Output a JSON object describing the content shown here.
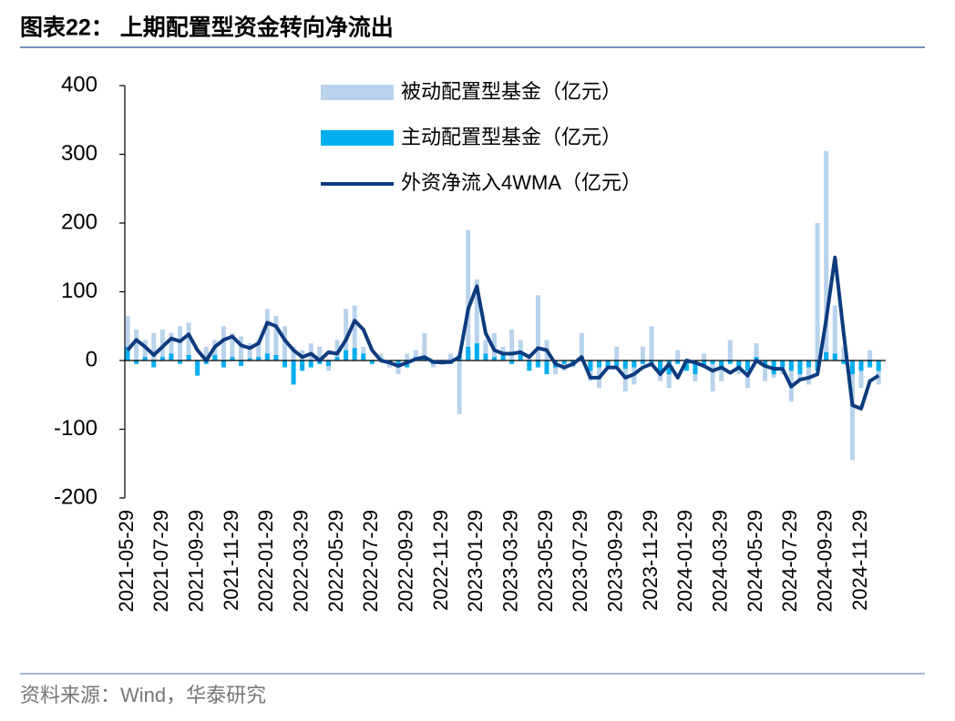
{
  "header": "图表22：  上期配置型资金转向净流出",
  "source": "资料来源：Wind，华泰研究",
  "chart_data": {
    "type": "bar-line",
    "categories": [
      "2021-05-29",
      null,
      null,
      null,
      "2021-07-29",
      null,
      null,
      null,
      "2021-09-29",
      null,
      null,
      null,
      "2021-11-29",
      null,
      null,
      null,
      "2022-01-29",
      null,
      null,
      null,
      "2022-03-29",
      null,
      null,
      null,
      "2022-05-29",
      null,
      null,
      null,
      "2022-07-29",
      null,
      null,
      null,
      "2022-09-29",
      null,
      null,
      null,
      "2022-11-29",
      null,
      null,
      null,
      "2023-01-29",
      null,
      null,
      null,
      "2023-03-29",
      null,
      null,
      null,
      "2023-05-29",
      null,
      null,
      null,
      "2023-07-29",
      null,
      null,
      null,
      "2023-09-29",
      null,
      null,
      null,
      "2023-11-29",
      null,
      null,
      null,
      "2024-01-29",
      null,
      null,
      null,
      "2024-03-29",
      null,
      null,
      null,
      "2024-05-29",
      null,
      null,
      null,
      "2024-07-29",
      null,
      null,
      null,
      "2024-09-29",
      null,
      null,
      null,
      "2024-11-29",
      null,
      null
    ],
    "series": [
      {
        "name": "被动配置型基金（亿元）",
        "kind": "bar",
        "color": "#b9d3ec",
        "values": [
          65,
          45,
          30,
          40,
          45,
          40,
          50,
          55,
          -10,
          20,
          30,
          50,
          40,
          35,
          25,
          30,
          75,
          65,
          50,
          20,
          15,
          25,
          20,
          -15,
          30,
          75,
          80,
          20,
          -5,
          10,
          -10,
          -20,
          10,
          15,
          40,
          -10,
          -5,
          10,
          -78,
          190,
          118,
          30,
          40,
          20,
          45,
          30,
          10,
          95,
          30,
          -20,
          -15,
          -10,
          40,
          -30,
          -40,
          -10,
          20,
          -45,
          -35,
          20,
          50,
          -30,
          -40,
          15,
          -10,
          -30,
          10,
          -45,
          -30,
          30,
          -20,
          -40,
          25,
          -30,
          -25,
          -20,
          -60,
          -30,
          -35,
          200,
          305,
          80,
          20,
          -145,
          -40,
          15,
          -35
        ]
      },
      {
        "name": "主动配置型基金（亿元）",
        "kind": "bar",
        "color": "#00aeef",
        "values": [
          20,
          -5,
          5,
          -10,
          5,
          10,
          -5,
          8,
          -22,
          -5,
          8,
          -10,
          5,
          -8,
          3,
          5,
          10,
          8,
          -10,
          -35,
          -15,
          -10,
          -5,
          -8,
          5,
          15,
          18,
          10,
          -5,
          3,
          -5,
          -8,
          -10,
          5,
          3,
          -5,
          -3,
          -5,
          8,
          20,
          25,
          10,
          5,
          8,
          -5,
          10,
          -15,
          -10,
          -20,
          -10,
          -5,
          -8,
          5,
          -15,
          -10,
          -10,
          -8,
          -12,
          -10,
          -5,
          -8,
          -15,
          -20,
          -5,
          -15,
          -20,
          -10,
          -5,
          -10,
          -5,
          -10,
          -15,
          5,
          -10,
          -20,
          -10,
          -15,
          -20,
          -10,
          -15,
          12,
          10,
          -5,
          -20,
          -15,
          -10,
          -15
        ]
      },
      {
        "name": "外资净流入4WMA（亿元）",
        "kind": "line",
        "color": "#0d3b7e",
        "values": [
          15,
          30,
          20,
          8,
          20,
          32,
          28,
          38,
          15,
          0,
          20,
          30,
          35,
          22,
          18,
          25,
          55,
          50,
          30,
          15,
          5,
          10,
          0,
          12,
          10,
          30,
          58,
          45,
          15,
          0,
          -3,
          -8,
          -3,
          2,
          5,
          -2,
          -3,
          -2,
          5,
          75,
          108,
          40,
          15,
          10,
          10,
          12,
          5,
          18,
          15,
          -5,
          -10,
          -5,
          5,
          -25,
          -25,
          -10,
          -10,
          -25,
          -20,
          -10,
          -5,
          -20,
          -5,
          -25,
          0,
          -3,
          -8,
          -15,
          -10,
          -18,
          -10,
          -22,
          0,
          -8,
          -12,
          -12,
          -38,
          -28,
          -25,
          -20,
          60,
          150,
          40,
          -65,
          -70,
          -30,
          -22
        ]
      }
    ],
    "ylim": [
      -200,
      400
    ],
    "yticks": [
      -200,
      -100,
      0,
      100,
      200,
      300,
      400
    ]
  }
}
